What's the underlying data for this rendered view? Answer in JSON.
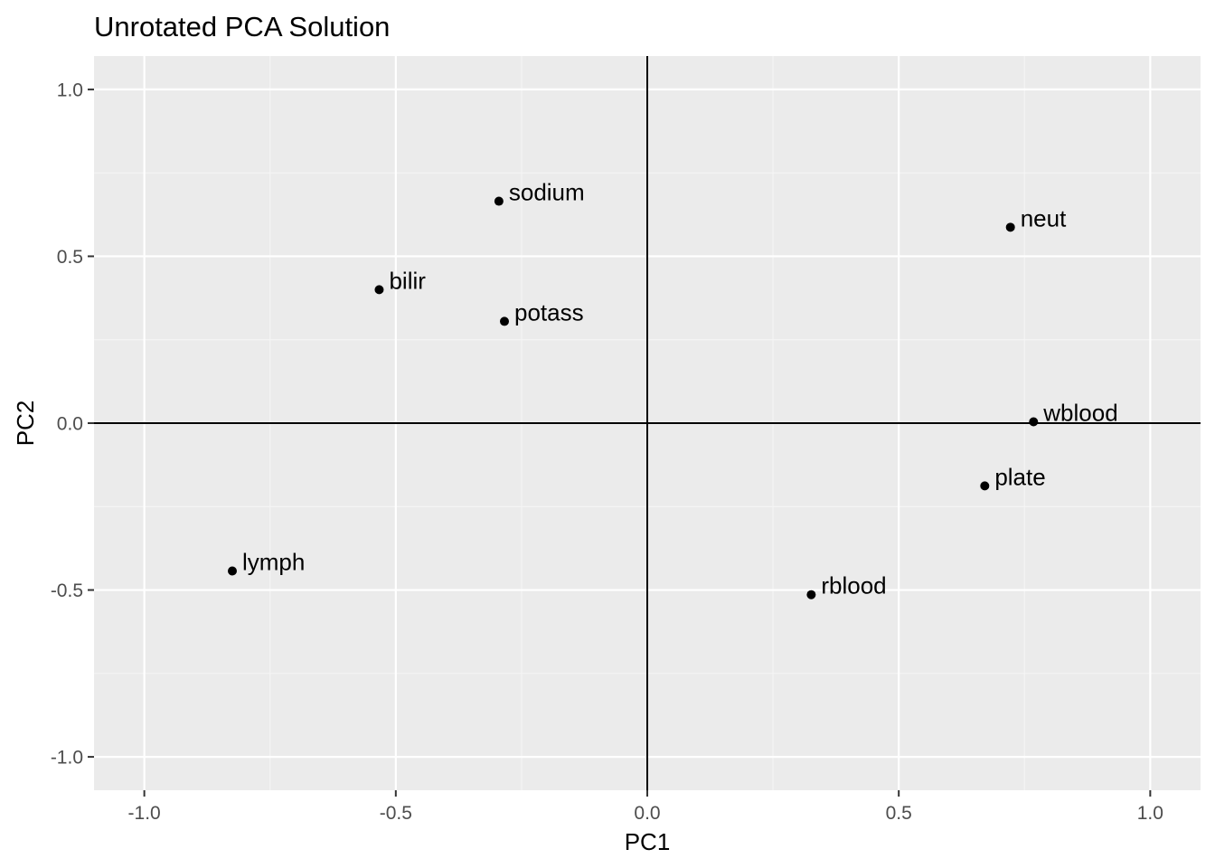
{
  "chart_data": {
    "type": "scatter",
    "title": "Unrotated PCA Solution",
    "xlabel": "PC1",
    "ylabel": "PC2",
    "xlim": [
      -1.1,
      1.1
    ],
    "ylim": [
      -1.1,
      1.1
    ],
    "x_ticks": [
      -1.0,
      -0.5,
      0.0,
      0.5,
      1.0
    ],
    "x_tick_labels": [
      "-1.0",
      "-0.5",
      "0.0",
      "0.5",
      "1.0"
    ],
    "y_ticks": [
      -1.0,
      -0.5,
      0.0,
      0.5,
      1.0
    ],
    "y_tick_labels": [
      "-1.0",
      "-0.5",
      "0.0",
      "0.5",
      "1.0"
    ],
    "grid": true,
    "reference_lines": {
      "x": 0,
      "y": 0
    },
    "points": [
      {
        "label": "sodium",
        "x": -0.295,
        "y": 0.665
      },
      {
        "label": "neut",
        "x": 0.722,
        "y": 0.587
      },
      {
        "label": "bilir",
        "x": -0.533,
        "y": 0.4
      },
      {
        "label": "potass",
        "x": -0.284,
        "y": 0.305
      },
      {
        "label": "wblood",
        "x": 0.768,
        "y": 0.004
      },
      {
        "label": "plate",
        "x": 0.671,
        "y": -0.188
      },
      {
        "label": "lymph",
        "x": -0.825,
        "y": -0.443
      },
      {
        "label": "rblood",
        "x": 0.326,
        "y": -0.514
      }
    ],
    "colors": {
      "panel_background": "#EBEBEB",
      "grid_major": "#FFFFFF",
      "grid_minor": "#F5F5F5",
      "point": "#000000",
      "reference_line": "#000000",
      "tick_label": "#4D4D4D",
      "text": "#000000"
    }
  }
}
